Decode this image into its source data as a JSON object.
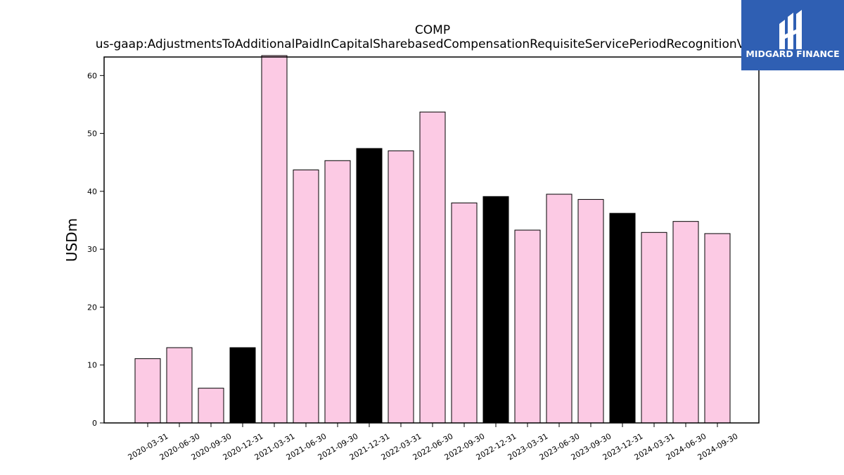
{
  "chart_data": {
    "type": "bar",
    "title": "COMP",
    "subtitle": "us-gaap:AdjustmentsToAdditionalPaidInCapitalSharebasedCompensationRequisiteServicePeriodRecognitionValue",
    "xlabel": "",
    "ylabel": "USDm",
    "ylim": [
      0,
      63.2
    ],
    "yticks": [
      0,
      10,
      20,
      30,
      40,
      50,
      60
    ],
    "grid": false,
    "categories": [
      "2020-03-31",
      "2020-06-30",
      "2020-09-30",
      "2020-12-31",
      "2021-03-31",
      "2021-06-30",
      "2021-09-30",
      "2021-12-31",
      "2022-03-31",
      "2022-06-30",
      "2022-09-30",
      "2022-12-31",
      "2023-03-31",
      "2023-06-30",
      "2023-09-30",
      "2023-12-31",
      "2024-03-31",
      "2024-06-30",
      "2024-09-30"
    ],
    "values": [
      11.1,
      13.0,
      6.0,
      13.0,
      63.5,
      43.7,
      45.3,
      47.4,
      47.0,
      53.7,
      38.0,
      39.1,
      33.3,
      39.5,
      38.6,
      36.2,
      32.9,
      34.8,
      32.7
    ],
    "colors": [
      "#fccae4",
      "#fccae4",
      "#fccae4",
      "#000000",
      "#fccae4",
      "#fccae4",
      "#fccae4",
      "#000000",
      "#fccae4",
      "#fccae4",
      "#fccae4",
      "#000000",
      "#fccae4",
      "#fccae4",
      "#fccae4",
      "#000000",
      "#fccae4",
      "#fccae4",
      "#fccae4"
    ]
  },
  "logo": {
    "text": "MIDGARD FINANCE",
    "background": "#2f5fb3"
  }
}
